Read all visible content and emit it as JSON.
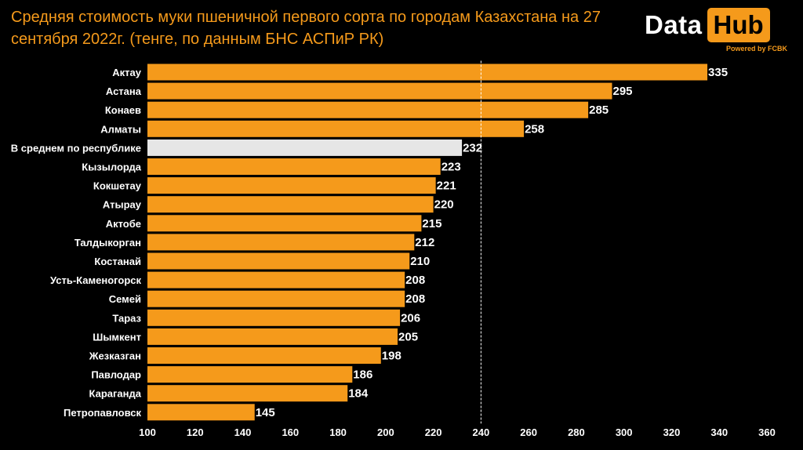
{
  "title": "Средняя стоимость муки пшеничной первого сорта по городам Казахстана на 27 сентября 2022г. (тенге, по данным БНС АСПиР РК)",
  "logo": {
    "data_text": "Data",
    "hub_text": "Hub",
    "powered_text": "Powered by FCBK"
  },
  "colors": {
    "bar": "#f59a1b",
    "highlight_bar": "#e6e6e6",
    "title": "#f59a1b",
    "background": "#000000"
  },
  "chart_data": {
    "type": "bar",
    "orientation": "horizontal",
    "title": "Средняя стоимость муки пшеничной первого сорта по городам Казахстана на 27 сентября 2022г. (тенге, по данным БНС АСПиР РК)",
    "categories": [
      "Актау",
      "Астана",
      "Конаев",
      "Алматы",
      "В среднем по республике",
      "Кызылорда",
      "Кокшетау",
      "Атырау",
      "Актобе",
      "Талдыкорган",
      "Костанай",
      "Усть-Каменогорск",
      "Семей",
      "Тараз",
      "Шымкент",
      "Жезказган",
      "Павлодар",
      "Караганда",
      "Петропавловск"
    ],
    "values": [
      335,
      295,
      285,
      258,
      232,
      223,
      221,
      220,
      215,
      212,
      210,
      208,
      208,
      206,
      205,
      198,
      186,
      184,
      145
    ],
    "highlight_category": "В среднем по республике",
    "xlim": [
      100,
      360
    ],
    "xticks": [
      100,
      120,
      140,
      160,
      180,
      200,
      220,
      240,
      260,
      280,
      300,
      320,
      340,
      360
    ],
    "reference_line": 240,
    "grid": false
  }
}
